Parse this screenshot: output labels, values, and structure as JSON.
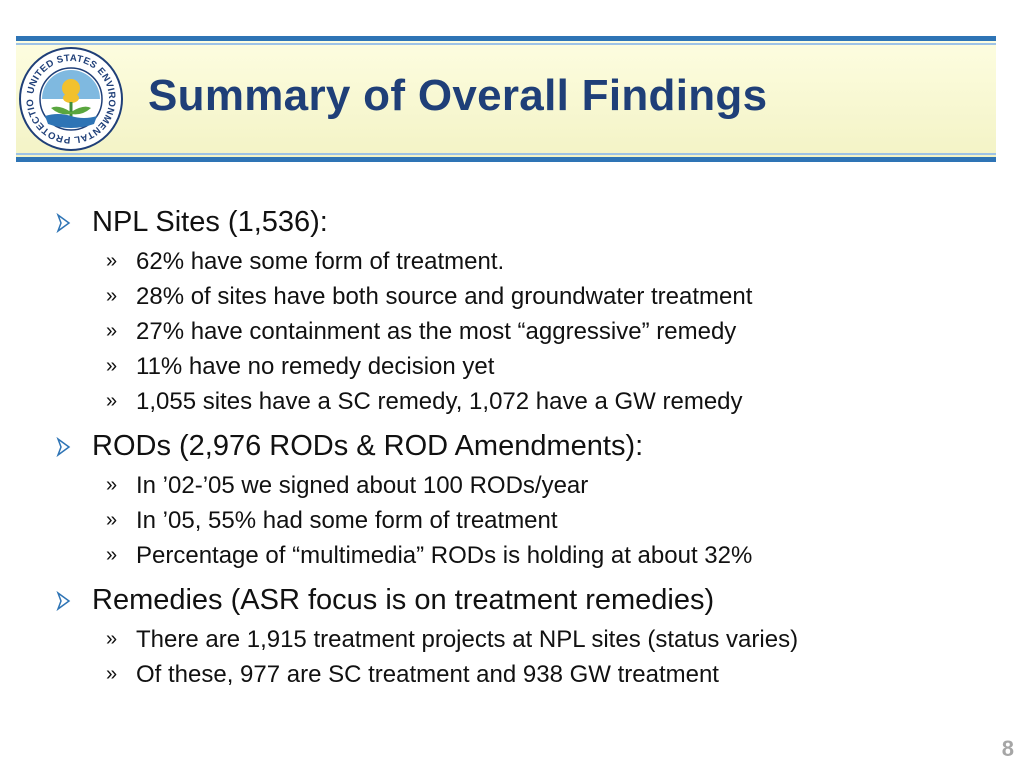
{
  "header": {
    "title": "Summary of Overall Findings",
    "logo": {
      "icon": "epa-seal-icon",
      "ring_text": "UNITED STATES ENVIRONMENTAL PROTECTION AGENCY"
    }
  },
  "colors": {
    "title": "#1f3f78",
    "band_border": "#2e74b5",
    "band_fill": "#fdfde0",
    "bullet_arrow": "#2e74b5",
    "page_number": "#a6a6a6"
  },
  "bullets": [
    {
      "text": "NPL Sites (1,536):",
      "subs": [
        "62% have some form of treatment.",
        "28% of sites have both source and groundwater treatment",
        "27% have containment as the most “aggressive” remedy",
        "11% have no remedy decision yet",
        "1,055 sites have a SC remedy, 1,072 have a GW remedy"
      ]
    },
    {
      "text": "RODs (2,976 RODs & ROD Amendments):",
      "subs": [
        "In ’02-’05 we signed about 100 RODs/year",
        "In ’05, 55% had some form of treatment",
        "Percentage of “multimedia” RODs is holding at about 32%"
      ]
    },
    {
      "text": "Remedies (ASR focus is on treatment remedies)",
      "subs": [
        "There are 1,915 treatment projects at NPL sites (status varies)",
        "Of these, 977 are SC treatment and 938 GW treatment"
      ]
    }
  ],
  "sub_marker": "»",
  "page_number": "8"
}
